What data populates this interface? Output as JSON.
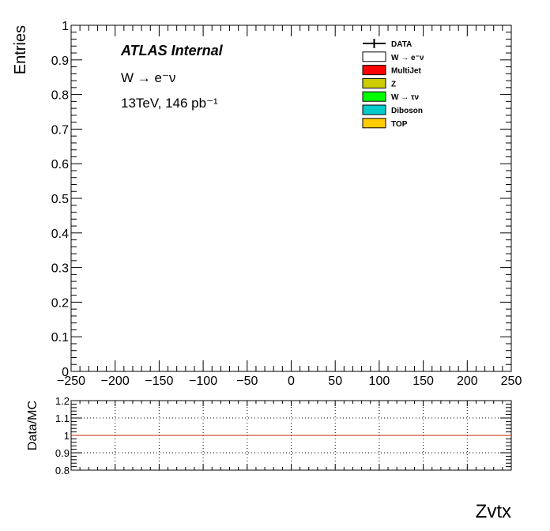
{
  "chart_data": [
    {
      "type": "line",
      "ylabel": "Entries",
      "xlim": [
        -250,
        250
      ],
      "ylim": [
        0,
        1
      ],
      "xticks": [
        "−250",
        "−200",
        "−150",
        "−100",
        "−50",
        "0",
        "50",
        "100",
        "150",
        "200",
        "250"
      ],
      "yticks": [
        "0",
        "0.1",
        "0.2",
        "0.3",
        "0.4",
        "0.5",
        "0.6",
        "0.7",
        "0.8",
        "0.9",
        "1"
      ],
      "grid": false,
      "series": [],
      "annotations": {
        "atlas": "ATLAS Internal",
        "channel": "W → e⁻ν",
        "lumi": "13TeV, 146 pb⁻¹"
      },
      "legend_placement": "top-right",
      "legend": [
        {
          "label": "DATA",
          "style": "marker",
          "color": "#000000"
        },
        {
          "label": "W  → e⁻ν",
          "style": "fill",
          "color": "#ffffff"
        },
        {
          "label": "MultiJet",
          "style": "fill",
          "color": "#ff0000"
        },
        {
          "label": "Z",
          "style": "fill",
          "color": "#cccc00"
        },
        {
          "label": "W  →  τν",
          "style": "fill",
          "color": "#00ff00"
        },
        {
          "label": "Diboson",
          "style": "fill",
          "color": "#00cccc"
        },
        {
          "label": "TOP",
          "style": "fill",
          "color": "#ffcc00"
        }
      ]
    },
    {
      "type": "line",
      "ylabel": "Data/MC",
      "xlabel": "Zvtx",
      "xlim": [
        -250,
        250
      ],
      "ylim": [
        0.8,
        1.2
      ],
      "yticks": [
        "0.8",
        "0.9",
        "1",
        "1.1",
        "1.2"
      ],
      "grid": true,
      "series": [
        {
          "x": [
            -250,
            250
          ],
          "values": [
            1,
            1
          ],
          "color": "#cc2200"
        }
      ]
    }
  ]
}
